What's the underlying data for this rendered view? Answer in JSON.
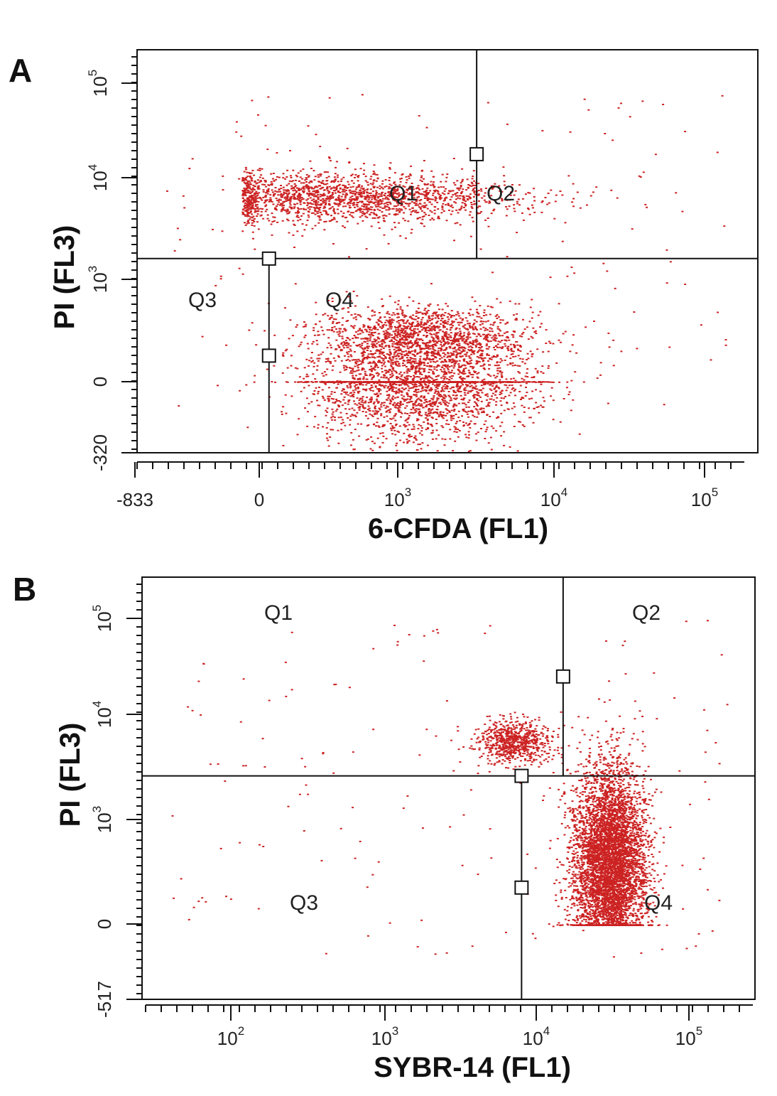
{
  "chart_data": [
    {
      "type": "scatter",
      "panel_label": "A",
      "title": "",
      "xlabel": "6-CFDA (FL1)",
      "ylabel": "PI (FL3)",
      "x_scale": "biexponential",
      "y_scale": "biexponential",
      "x_tick_labels": [
        {
          "base": "-833",
          "exp": ""
        },
        {
          "base": "0",
          "exp": ""
        },
        {
          "base": "10",
          "exp": "3"
        },
        {
          "base": "10",
          "exp": "4"
        },
        {
          "base": "10",
          "exp": "5"
        }
      ],
      "y_tick_labels": [
        {
          "base": "-320",
          "exp": ""
        },
        {
          "base": "0",
          "exp": ""
        },
        {
          "base": "10",
          "exp": "3"
        },
        {
          "base": "10",
          "exp": "4"
        },
        {
          "base": "10",
          "exp": "5"
        }
      ],
      "gates": {
        "x_lower": 150,
        "x_upper": 3200,
        "y": 1600
      },
      "quadrant_labels": [
        "Q1",
        "Q2",
        "Q3",
        "Q4"
      ],
      "point_color": "#cc2222",
      "series": [
        {
          "cluster": "PI-positive",
          "x_center": 450,
          "y_center": 6500,
          "x_spread_decades": 0.55,
          "y_spread_decades": 0.12
        },
        {
          "cluster": "6-CFDA-positive",
          "x_center": 1350,
          "y_center": 100,
          "x_spread_decades": 0.35,
          "y_spread_decades": 0.45
        }
      ]
    },
    {
      "type": "scatter",
      "panel_label": "B",
      "title": "",
      "xlabel": "SYBR-14 (FL1)",
      "ylabel": "PI (FL3)",
      "x_scale": "log",
      "y_scale": "biexponential",
      "x_tick_labels": [
        {
          "base": "10",
          "exp": "2"
        },
        {
          "base": "10",
          "exp": "3"
        },
        {
          "base": "10",
          "exp": "4"
        },
        {
          "base": "10",
          "exp": "5"
        }
      ],
      "y_tick_labels": [
        {
          "base": "-517",
          "exp": ""
        },
        {
          "base": "0",
          "exp": ""
        },
        {
          "base": "10",
          "exp": "3"
        },
        {
          "base": "10",
          "exp": "4"
        },
        {
          "base": "10",
          "exp": "5"
        }
      ],
      "gates": {
        "x_lower": 8000,
        "x_upper": 15000,
        "y": 2600
      },
      "quadrant_labels": [
        "Q1",
        "Q2",
        "Q3",
        "Q4"
      ],
      "point_color": "#cc2222",
      "series": [
        {
          "cluster": "PI-positive",
          "x_center": 7000,
          "y_center": 5500,
          "x_spread_decades": 0.12,
          "y_spread_decades": 0.1
        },
        {
          "cluster": "SYBR-14-positive",
          "x_center": 30000,
          "y_center": 400,
          "x_spread_decades": 0.12,
          "y_spread_decades": 0.45
        }
      ]
    }
  ]
}
